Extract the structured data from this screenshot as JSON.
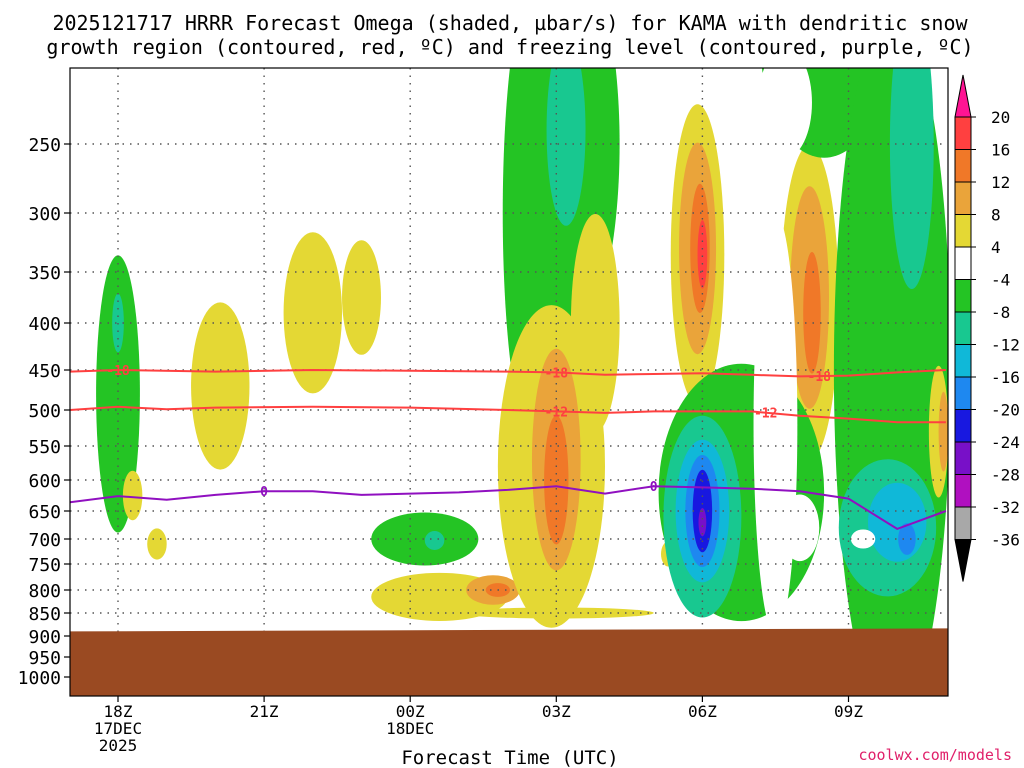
{
  "chart_data": {
    "type": "heatmap",
    "title_line1": "2025121717 HRRR Forecast Omega (shaded, µbar/s) for KAMA with dendritic snow",
    "title_line2": "growth region (contoured, red, ºC) and freezing level (contoured, purple, ºC)",
    "xlabel": "Forecast Time (UTC)",
    "credit": "coolwx.com/models",
    "x_ticks": [
      {
        "hour": 1,
        "lines": [
          "18Z",
          "17DEC",
          "2025"
        ]
      },
      {
        "hour": 4,
        "lines": [
          "21Z"
        ]
      },
      {
        "hour": 7,
        "lines": [
          "00Z",
          "18DEC"
        ]
      },
      {
        "hour": 10,
        "lines": [
          "03Z"
        ]
      },
      {
        "hour": 13,
        "lines": [
          "06Z"
        ]
      },
      {
        "hour": 16,
        "lines": [
          "09Z"
        ]
      }
    ],
    "xlim": [
      0,
      18
    ],
    "y_pressure_levels_mb": [
      250,
      300,
      350,
      400,
      450,
      500,
      550,
      600,
      650,
      700,
      750,
      800,
      850,
      900,
      950,
      1000
    ],
    "colorbar": {
      "labels": [
        "20",
        "16",
        "12",
        "8",
        "4",
        "-4",
        "-8",
        "-12",
        "-16",
        "-20",
        "-24",
        "-28",
        "-32",
        "-36"
      ],
      "bins": [
        {
          "range": [
            20,
            24
          ],
          "color": "#ff1493"
        },
        {
          "range": [
            16,
            20
          ],
          "color": "#ff4040"
        },
        {
          "range": [
            12,
            16
          ],
          "color": "#f07828"
        },
        {
          "range": [
            8,
            12
          ],
          "color": "#eaa43a"
        },
        {
          "range": [
            4,
            8
          ],
          "color": "#e4d834"
        },
        {
          "range": [
            -4,
            4
          ],
          "color": "#ffffff"
        },
        {
          "range": [
            -8,
            -4
          ],
          "color": "#24c424"
        },
        {
          "range": [
            -12,
            -8
          ],
          "color": "#18c890"
        },
        {
          "range": [
            -16,
            -12
          ],
          "color": "#10b8d8"
        },
        {
          "range": [
            -20,
            -16
          ],
          "color": "#1e88f0"
        },
        {
          "range": [
            -24,
            -20
          ],
          "color": "#1818e0"
        },
        {
          "range": [
            -28,
            -24
          ],
          "color": "#7810c8"
        },
        {
          "range": [
            -32,
            -28
          ],
          "color": "#b010c0"
        },
        {
          "range": [
            -36,
            -32
          ],
          "color": "#a8a8a8"
        },
        {
          "range": [
            -40,
            -36
          ],
          "color": "#000000"
        }
      ]
    },
    "terrain": {
      "color": "#9a4a22",
      "surface_pressure_mb": 890
    },
    "snow_growth_contours": [
      {
        "label": "-18",
        "color": "#ff4040",
        "points": [
          [
            0,
            452
          ],
          [
            1,
            450
          ],
          [
            3,
            452
          ],
          [
            5,
            450
          ],
          [
            7,
            451
          ],
          [
            9,
            452
          ],
          [
            10,
            453
          ],
          [
            11,
            456
          ],
          [
            12,
            455
          ],
          [
            13,
            454
          ],
          [
            14,
            456
          ],
          [
            15,
            458
          ],
          [
            16,
            457
          ],
          [
            17,
            453
          ],
          [
            18,
            450
          ]
        ],
        "label_hours": [
          1,
          10,
          15.4
        ]
      },
      {
        "label": "-12",
        "color": "#ff4040",
        "points": [
          [
            0,
            500
          ],
          [
            1,
            496
          ],
          [
            2,
            499
          ],
          [
            3,
            497
          ],
          [
            5,
            496
          ],
          [
            7,
            497
          ],
          [
            9,
            500
          ],
          [
            10,
            502
          ],
          [
            11,
            504
          ],
          [
            12,
            502
          ],
          [
            13,
            502
          ],
          [
            14,
            502
          ],
          [
            15,
            508
          ],
          [
            16,
            512
          ],
          [
            17,
            517
          ],
          [
            18,
            517
          ]
        ],
        "label_hours": [
          10,
          14.3
        ]
      }
    ],
    "freezing_level_contour": {
      "label": "0",
      "color": "#9010c0",
      "points": [
        [
          0,
          636
        ],
        [
          1,
          626
        ],
        [
          2,
          632
        ],
        [
          3,
          624
        ],
        [
          4,
          618
        ],
        [
          5,
          618
        ],
        [
          6,
          624
        ],
        [
          7,
          622
        ],
        [
          8,
          620
        ],
        [
          9,
          616
        ],
        [
          10,
          610
        ],
        [
          11,
          622
        ],
        [
          12,
          610
        ],
        [
          13,
          612
        ],
        [
          14,
          614
        ],
        [
          15,
          618
        ],
        [
          16,
          630
        ],
        [
          17,
          682
        ],
        [
          18,
          650
        ]
      ],
      "label_hours": [
        4,
        12
      ]
    },
    "omega_regions": [
      {
        "color": "#24c424",
        "hour": 1.0,
        "p": 480,
        "rx": 0.45,
        "rp": 165
      },
      {
        "color": "#18c890",
        "hour": 1.0,
        "p": 400,
        "rx": 0.12,
        "rp": 30
      },
      {
        "color": "#e4d834",
        "hour": 1.3,
        "p": 625,
        "rx": 0.2,
        "rp": 40
      },
      {
        "color": "#e4d834",
        "hour": 1.8,
        "p": 710,
        "rx": 0.2,
        "rp": 30
      },
      {
        "color": "#e4d834",
        "hour": 3.1,
        "p": 470,
        "rx": 0.6,
        "rp": 100
      },
      {
        "color": "#e4d834",
        "hour": 5.0,
        "p": 390,
        "rx": 0.6,
        "rp": 80
      },
      {
        "color": "#e4d834",
        "hour": 7.6,
        "p": 815,
        "rx": 1.4,
        "rp": 50
      },
      {
        "color": "#eaa43a",
        "hour": 8.7,
        "p": 800,
        "rx": 0.55,
        "rp": 30
      },
      {
        "color": "#f07828",
        "hour": 8.8,
        "p": 800,
        "rx": 0.25,
        "rp": 14
      },
      {
        "color": "#24c424",
        "hour": 7.3,
        "p": 700,
        "rx": 1.1,
        "rp": 50
      },
      {
        "color": "#18c890",
        "hour": 7.5,
        "p": 703,
        "rx": 0.2,
        "rp": 18
      },
      {
        "color": "#24c424",
        "hour": 9.6,
        "p": 300,
        "rx": 0.7,
        "rp": 200
      },
      {
        "color": "#24c424",
        "hour": 10.3,
        "p": 250,
        "rx": 1.0,
        "rp": 150
      },
      {
        "color": "#18c890",
        "hour": 10.2,
        "p": 240,
        "rx": 0.4,
        "rp": 70
      },
      {
        "color": "#e4d834",
        "hour": 9.9,
        "p": 580,
        "rx": 1.1,
        "rp": 230
      },
      {
        "color": "#e4d834",
        "hour": 10.8,
        "p": 400,
        "rx": 0.5,
        "rp": 110
      },
      {
        "color": "#eaa43a",
        "hour": 10.0,
        "p": 570,
        "rx": 0.5,
        "rp": 160
      },
      {
        "color": "#f07828",
        "hour": 10.0,
        "p": 600,
        "rx": 0.25,
        "rp": 100
      },
      {
        "color": "#e4d834",
        "hour": 10.0,
        "p": 850,
        "rx": 2.0,
        "rp": 12
      },
      {
        "color": "#e4d834",
        "hour": 6.0,
        "p": 375,
        "rx": 0.4,
        "rp": 55
      },
      {
        "color": "#e4d834",
        "hour": 12.3,
        "p": 730,
        "rx": 0.15,
        "rp": 25
      },
      {
        "color": "#e4d834",
        "hour": 12.9,
        "p": 335,
        "rx": 0.55,
        "rp": 130
      },
      {
        "color": "#eaa43a",
        "hour": 12.9,
        "p": 330,
        "rx": 0.38,
        "rp": 90
      },
      {
        "color": "#f07828",
        "hour": 12.95,
        "p": 330,
        "rx": 0.2,
        "rp": 55
      },
      {
        "color": "#ff4040",
        "hour": 13.0,
        "p": 335,
        "rx": 0.1,
        "rp": 30
      },
      {
        "color": "#e4d834",
        "hour": 15.2,
        "p": 380,
        "rx": 0.6,
        "rp": 150
      },
      {
        "color": "#eaa43a",
        "hour": 15.2,
        "p": 375,
        "rx": 0.4,
        "rp": 105
      },
      {
        "color": "#f07828",
        "hour": 15.25,
        "p": 390,
        "rx": 0.18,
        "rp": 60
      },
      {
        "color": "#24c424",
        "hour": 13.8,
        "p": 620,
        "rx": 1.7,
        "rp": 200
      },
      {
        "color": "#24c424",
        "hour": 15.5,
        "p": 180,
        "rx": 1.3,
        "rp": 80
      },
      {
        "color": "#24c424",
        "hour": 16.9,
        "p": 450,
        "rx": 1.2,
        "rp": 380
      },
      {
        "color": "#18c890",
        "hour": 17.3,
        "p": 250,
        "rx": 0.45,
        "rp": 110
      },
      {
        "color": "#18c890",
        "hour": 16.8,
        "p": 680,
        "rx": 1.0,
        "rp": 120
      },
      {
        "color": "#10b8d8",
        "hour": 17.0,
        "p": 670,
        "rx": 0.6,
        "rp": 70
      },
      {
        "color": "#1e88f0",
        "hour": 17.2,
        "p": 700,
        "rx": 0.18,
        "rp": 30
      },
      {
        "color": "#18c890",
        "hour": 13.0,
        "p": 660,
        "rx": 0.8,
        "rp": 170
      },
      {
        "color": "#10b8d8",
        "hour": 13.0,
        "p": 650,
        "rx": 0.55,
        "rp": 120
      },
      {
        "color": "#1e88f0",
        "hour": 13.0,
        "p": 650,
        "rx": 0.35,
        "rp": 95
      },
      {
        "color": "#1818e0",
        "hour": 13.0,
        "p": 650,
        "rx": 0.2,
        "rp": 70
      },
      {
        "color": "#7810c8",
        "hour": 13.0,
        "p": 670,
        "rx": 0.08,
        "rp": 25
      },
      {
        "color": "#e4d834",
        "hour": 17.85,
        "p": 530,
        "rx": 0.2,
        "rp": 90
      },
      {
        "color": "#eaa43a",
        "hour": 17.95,
        "p": 530,
        "rx": 0.1,
        "rp": 55
      }
    ],
    "white_cutouts": [
      {
        "hour": 14.5,
        "p": 520,
        "rx": 0.45,
        "rp": 260
      },
      {
        "hour": 16.3,
        "p": 700,
        "rx": 0.25,
        "rp": 18
      },
      {
        "hour": 14.7,
        "p": 220,
        "rx": 0.55,
        "rp": 40
      },
      {
        "hour": 15.0,
        "p": 680,
        "rx": 0.4,
        "rp": 60
      }
    ]
  }
}
